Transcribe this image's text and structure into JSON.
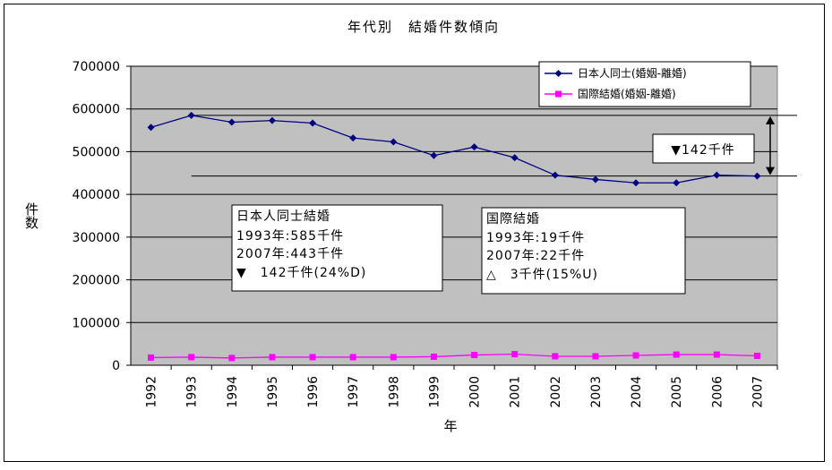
{
  "chart_data": {
    "type": "line",
    "title": "年代別　結婚件数傾向",
    "xlabel": "年",
    "ylabel": "件数",
    "categories": [
      "1992",
      "1993",
      "1994",
      "1995",
      "1996",
      "1997",
      "1998",
      "1999",
      "2000",
      "2001",
      "2002",
      "2003",
      "2004",
      "2005",
      "2006",
      "2007"
    ],
    "ylim": [
      0,
      700000
    ],
    "yticks": [
      "0",
      "100000",
      "200000",
      "300000",
      "400000",
      "500000",
      "600000",
      "700000"
    ],
    "grid": true,
    "legend_position": "top-right",
    "series": [
      {
        "name": "日本人同士(婚姻-離婚)",
        "color": "#000080",
        "marker": "diamond",
        "values": [
          557000,
          585000,
          569000,
          573000,
          567000,
          532000,
          523000,
          491000,
          511000,
          486000,
          445000,
          435000,
          427000,
          427000,
          445000,
          443000
        ]
      },
      {
        "name": "国際結婚(婚姻-離婚)",
        "color": "#ff00ff",
        "marker": "square",
        "values": [
          18000,
          19000,
          17000,
          19000,
          19000,
          19000,
          19000,
          20000,
          24000,
          26000,
          21000,
          21000,
          23000,
          25000,
          25000,
          22000
        ]
      }
    ],
    "reference_values": [
      585000,
      443000
    ],
    "callout": {
      "text": "▼142千件"
    },
    "annotations": [
      {
        "lines": [
          "日本人同士結婚",
          "1993年:585千件",
          "2007年:443千件",
          "▼　142千件(24%D)"
        ]
      },
      {
        "lines": [
          "国際結婚",
          "1993年:19千件",
          "2007年:22千件",
          "△　3千件(15%U)"
        ]
      }
    ]
  },
  "colors": {
    "plot_background": "#c0c0c0",
    "gridline": "#000000"
  }
}
